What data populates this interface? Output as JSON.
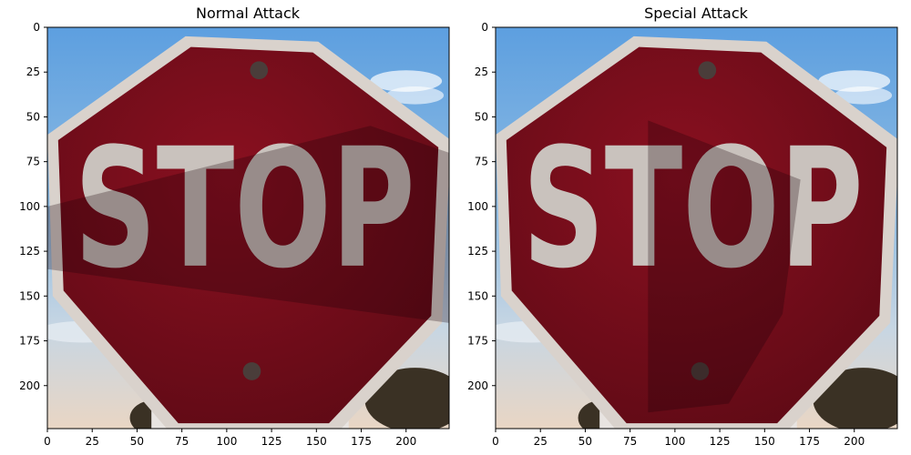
{
  "figure": {
    "panels": [
      {
        "title": "Normal Attack",
        "image_caption": "STOP",
        "shade_region": "diagonal band across sign center"
      },
      {
        "title": "Special Attack",
        "image_caption": "STOP",
        "shade_region": "vertical wedge over middle of sign"
      }
    ]
  },
  "colors": {
    "sky": "#7fb3e6",
    "sign_red": "#7b0e1c",
    "sign_border": "#d9d2cc",
    "letters": "#c9c2bd",
    "shade": "#1a0006"
  },
  "chart_data": [
    {
      "type": "image",
      "title": "Normal Attack",
      "xlabel": "",
      "ylabel": "",
      "xlim": [
        0,
        224
      ],
      "ylim": [
        224,
        0
      ],
      "xticks": [
        0,
        25,
        50,
        75,
        100,
        125,
        150,
        175,
        200
      ],
      "yticks": [
        0,
        25,
        50,
        75,
        100,
        125,
        150,
        175,
        200
      ],
      "grid": false
    },
    {
      "type": "image",
      "title": "Special Attack",
      "xlabel": "",
      "ylabel": "",
      "xlim": [
        0,
        224
      ],
      "ylim": [
        224,
        0
      ],
      "xticks": [
        0,
        25,
        50,
        75,
        100,
        125,
        150,
        175,
        200
      ],
      "yticks": [
        0,
        25,
        50,
        75,
        100,
        125,
        150,
        175,
        200
      ],
      "grid": false
    }
  ]
}
